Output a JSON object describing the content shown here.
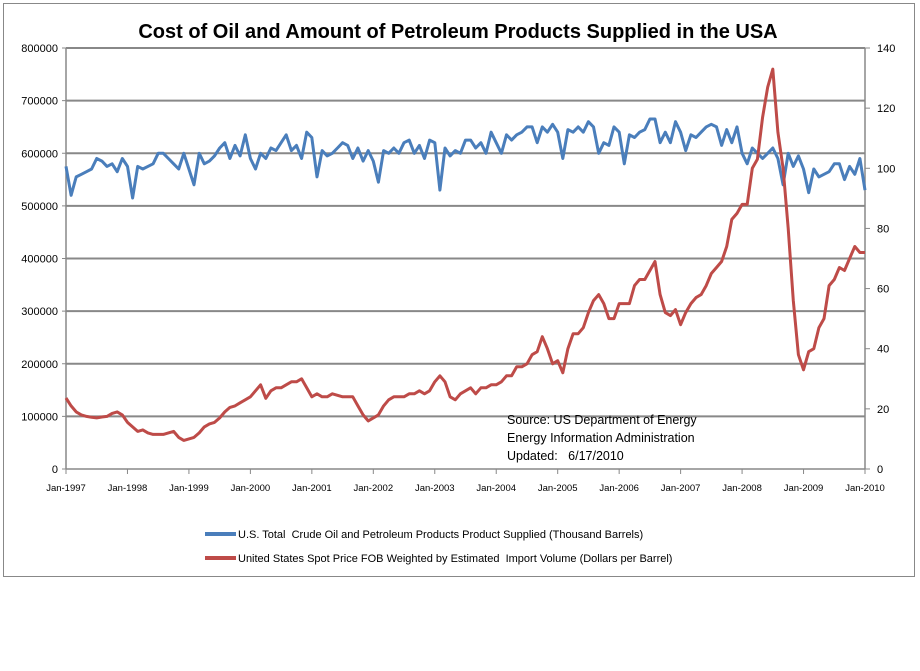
{
  "chart_data": {
    "type": "line",
    "title": "Cost of Oil and Amount of Petroleum Products Supplied in the USA",
    "x_tick_labels": [
      "Jan-1997",
      "Jan-1998",
      "Jan-1999",
      "Jan-2000",
      "Jan-2001",
      "Jan-2002",
      "Jan-2003",
      "Jan-2004",
      "Jan-2005",
      "Jan-2006",
      "Jan-2007",
      "Jan-2008",
      "Jan-2009",
      "Jan-2010"
    ],
    "x_frequency": "monthly",
    "y_left": {
      "range": [
        0,
        800000
      ],
      "ticks": [
        "0",
        "100000",
        "200000",
        "300000",
        "400000",
        "500000",
        "600000",
        "700000",
        "800000"
      ]
    },
    "y_right": {
      "range": [
        0,
        140
      ],
      "ticks": [
        "0",
        "20",
        "40",
        "60",
        "80",
        "100",
        "120",
        "140"
      ]
    },
    "grid": "horizontal, on left axis ticks",
    "legend_placement": "bottom",
    "annotation": [
      "Source: US Department of Energy",
      "Energy Information Administration",
      "Updated:   6/17/2010"
    ],
    "series": [
      {
        "name": "U.S. Total  Crude Oil and Petroleum Products Product Supplied (Thousand Barrels)",
        "axis": "left",
        "color": "#4a7ebb",
        "values_by_year": {
          "1997": [
            575,
            520,
            555,
            560,
            565,
            570,
            590,
            585,
            575,
            580,
            565,
            590
          ],
          "1998": [
            575,
            515,
            575,
            570,
            575,
            580,
            600,
            600,
            590,
            580,
            570,
            600
          ],
          "1999": [
            570,
            540,
            600,
            580,
            585,
            595,
            610,
            620,
            590,
            615,
            595,
            635
          ],
          "2000": [
            590,
            570,
            600,
            590,
            610,
            605,
            620,
            635,
            605,
            615,
            590,
            640
          ],
          "2001": [
            630,
            555,
            605,
            595,
            600,
            610,
            620,
            615,
            590,
            610,
            585,
            605
          ],
          "2002": [
            585,
            545,
            605,
            600,
            610,
            600,
            620,
            625,
            600,
            615,
            590,
            625
          ],
          "2003": [
            620,
            530,
            610,
            595,
            605,
            600,
            625,
            625,
            610,
            620,
            600,
            640
          ],
          "2004": [
            620,
            600,
            635,
            625,
            635,
            640,
            650,
            650,
            620,
            650,
            640,
            655
          ],
          "2005": [
            640,
            590,
            645,
            640,
            650,
            640,
            660,
            650,
            600,
            620,
            615,
            650
          ],
          "2006": [
            640,
            580,
            635,
            630,
            640,
            645,
            665,
            665,
            620,
            640,
            620,
            660
          ],
          "2007": [
            640,
            605,
            635,
            630,
            640,
            650,
            655,
            650,
            615,
            645,
            620,
            650
          ],
          "2008": [
            600,
            580,
            610,
            600,
            590,
            600,
            610,
            590,
            540,
            600,
            575,
            595
          ],
          "2009": [
            570,
            525,
            570,
            555,
            560,
            565,
            580,
            580,
            550,
            575,
            560,
            590
          ],
          "2010": [
            530
          ]
        },
        "value_unit_multiplier": 1000
      },
      {
        "name": "United States Spot Price FOB Weighted by Estimated  Import Volume (Dollars per Barrel)",
        "axis": "right",
        "color": "#be4b48",
        "values_by_year": {
          "1997": [
            23.6,
            21,
            19,
            18,
            17.5,
            17.2,
            17,
            17.3,
            17.5,
            18.5,
            19,
            18
          ],
          "1998": [
            15.5,
            14,
            12.5,
            13,
            12,
            11.5,
            11.5,
            11.5,
            12,
            12.5,
            10.5,
            9.5
          ],
          "1999": [
            10,
            10.5,
            12,
            14,
            15,
            15.5,
            17,
            19,
            20.5,
            21,
            22,
            23
          ],
          "2000": [
            24,
            26,
            28,
            23.5,
            26,
            27,
            27,
            28,
            29,
            29,
            30,
            27
          ],
          "2001": [
            24,
            25,
            24,
            24,
            25,
            24.5,
            24,
            24,
            24,
            21,
            18,
            16
          ],
          "2002": [
            17,
            18,
            21,
            23,
            24,
            24,
            24,
            25,
            25,
            26,
            25,
            26
          ],
          "2003": [
            29,
            31,
            29,
            24,
            23,
            25,
            26,
            27,
            25,
            27,
            27,
            28
          ],
          "2004": [
            28,
            29,
            31,
            31,
            34,
            34,
            35,
            38,
            39,
            44,
            40,
            35
          ],
          "2005": [
            36,
            32,
            40,
            45,
            45,
            47,
            52,
            56,
            58,
            55,
            50,
            50
          ],
          "2006": [
            55,
            55,
            55,
            61,
            63,
            63,
            66,
            69,
            58,
            52,
            51,
            53
          ],
          "2007": [
            48,
            52,
            55,
            57,
            58,
            61,
            65,
            67,
            69,
            74,
            83,
            85
          ],
          "2008": [
            88,
            88,
            100,
            103,
            117,
            127,
            133,
            112,
            100,
            80,
            56,
            38
          ],
          "2009": [
            33,
            39,
            40,
            47,
            50,
            61,
            63,
            67,
            66,
            70,
            74,
            72
          ],
          "2010": [
            72
          ]
        }
      }
    ]
  }
}
